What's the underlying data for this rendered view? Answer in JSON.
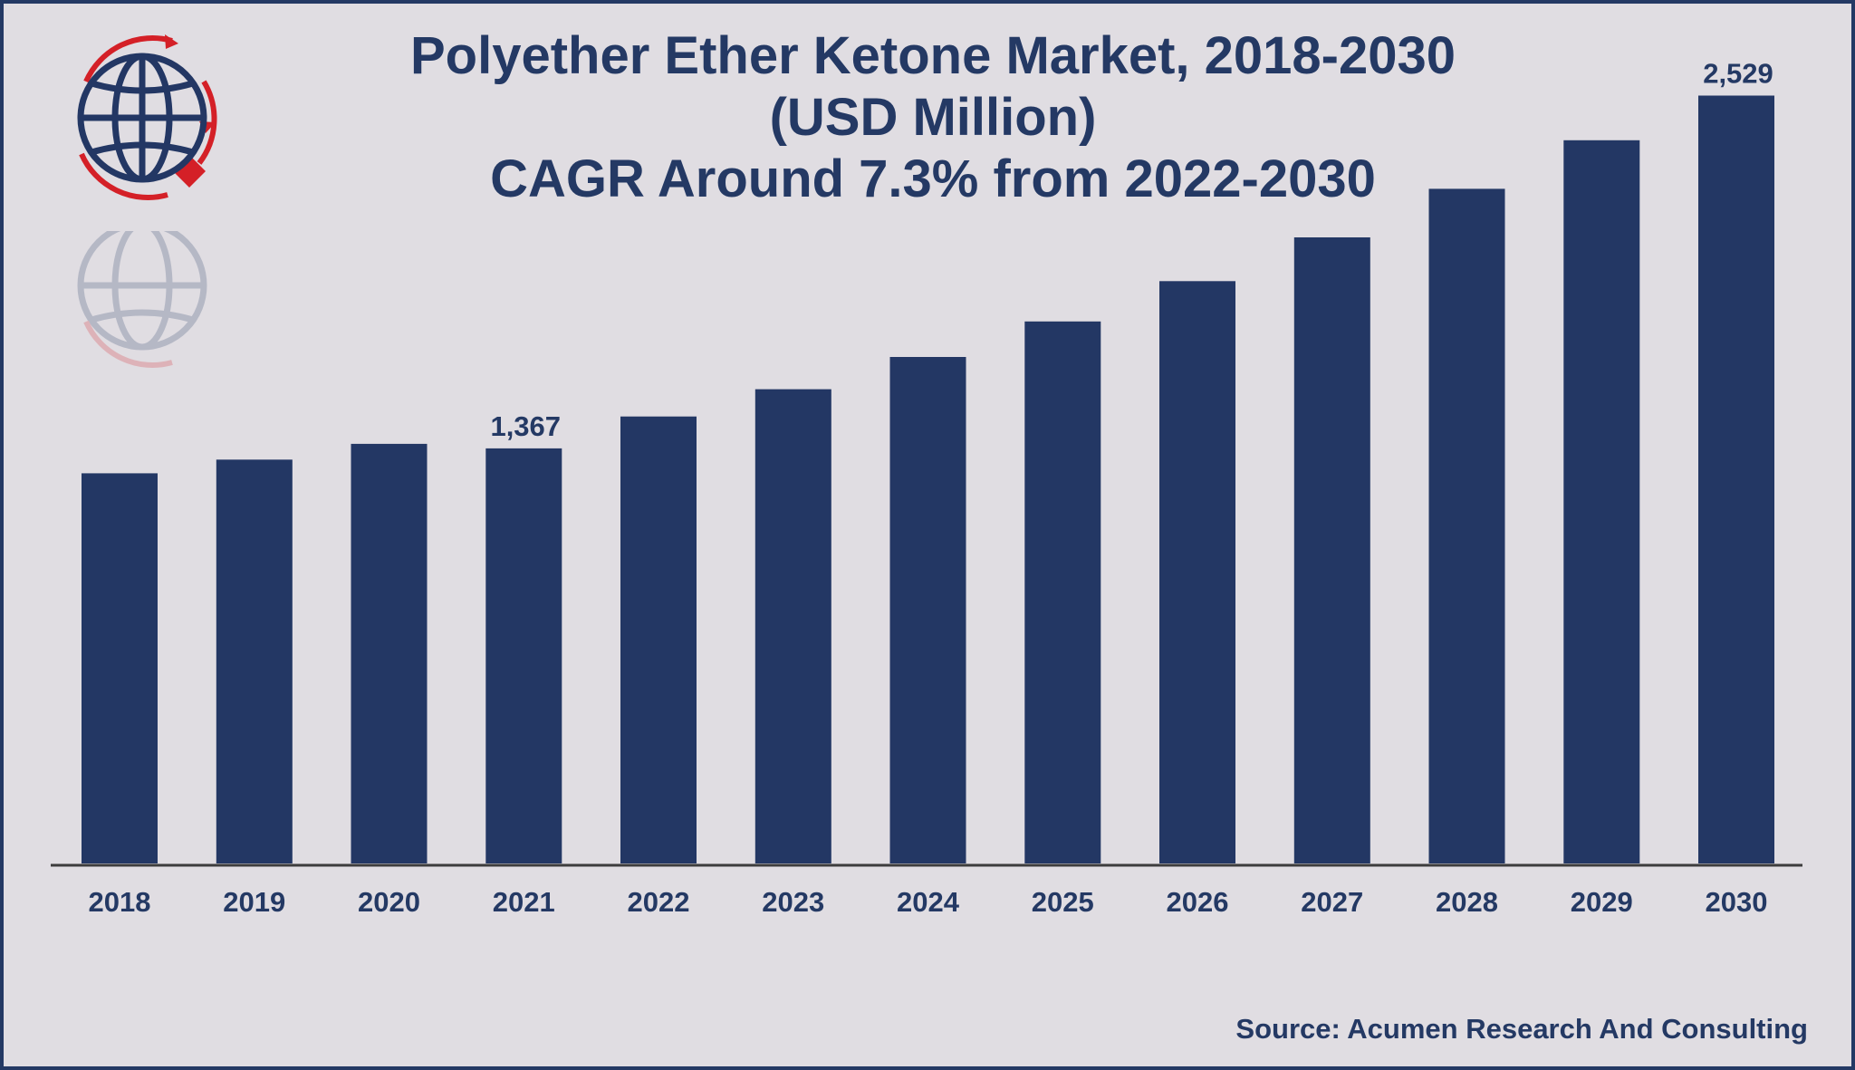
{
  "header": {
    "title_line1": "Polyether Ether Ketone Market, 2018-2030",
    "title_line2": "(USD Million)",
    "title_line3": "CAGR Around 7.3% from 2022-2030"
  },
  "footer": {
    "source": "Source: Acumen Research And Consulting"
  },
  "logo": {
    "icon": "globe-icon"
  },
  "colors": {
    "bar": "#233764",
    "text": "#243964",
    "background": "#e0dde2",
    "logo_red": "#d42027"
  },
  "chart_data": {
    "type": "bar",
    "categories": [
      "2018",
      "2019",
      "2020",
      "2021",
      "2022",
      "2023",
      "2024",
      "2025",
      "2026",
      "2027",
      "2028",
      "2029",
      "2030"
    ],
    "values": [
      1285,
      1330,
      1382,
      1367,
      1472,
      1562,
      1668,
      1785,
      1918,
      2062,
      2222,
      2382,
      2529
    ],
    "data_labels": {
      "3": "1,367",
      "12": "2,529"
    },
    "ylim": [
      0,
      2620
    ],
    "grid": false,
    "legend": "none"
  }
}
